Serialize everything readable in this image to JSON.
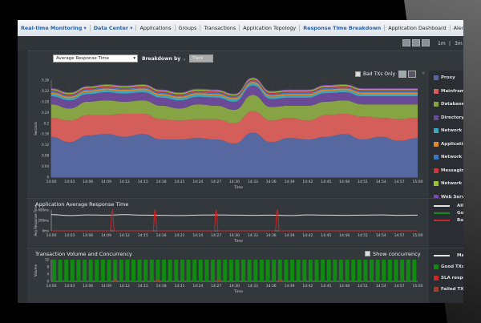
{
  "nav": {
    "items": [
      {
        "label": "Real-time Monitoring ▾",
        "active": true
      },
      {
        "label": "Data Center ▾",
        "active": true
      },
      {
        "label": "Applications"
      },
      {
        "label": "Groups"
      },
      {
        "label": "Transactions"
      },
      {
        "label": "Application Topology"
      },
      {
        "label": "Response Time Breakdown",
        "active": true
      },
      {
        "label": "Application Dashboard"
      },
      {
        "label": "Alerts"
      }
    ]
  },
  "toolbar": {
    "range_1": "1m",
    "separator": "|",
    "range_2": "3m"
  },
  "breakdown": {
    "metric_select": "Average Response Time",
    "label": "Breakdown by",
    "arrow": "»",
    "tiers_select": "Tiers",
    "bad_only_label": "Bad TXs Only",
    "legend_toggle": "»"
  },
  "times": [
    "14:00",
    "14:03",
    "14:06",
    "14:09",
    "14:12",
    "14:15",
    "14:18",
    "14:21",
    "14:24",
    "14:27",
    "14:30",
    "14:33",
    "14:36",
    "14:39",
    "14:42",
    "14:45",
    "14:48",
    "14:51",
    "14:54",
    "14:57",
    "15:00"
  ],
  "chart_data": [
    {
      "type": "area",
      "stacked": true,
      "xlabel": "Time",
      "ylabel": "Seconds",
      "ylim": [
        0,
        0.36
      ],
      "yticks": [
        "0",
        "0.04",
        "0.08",
        "0.12",
        "0.16",
        "0.2",
        "0.24",
        "0.28",
        "0.32",
        "0.36"
      ],
      "grid": true,
      "legend": "right",
      "series": [
        {
          "name": "Proxy",
          "color": "#56689f",
          "values": [
            0.15,
            0.13,
            0.155,
            0.16,
            0.15,
            0.16,
            0.14,
            0.14,
            0.145,
            0.14,
            0.125,
            0.165,
            0.13,
            0.145,
            0.14,
            0.15,
            0.16,
            0.14,
            0.15,
            0.135,
            0.145
          ]
        },
        {
          "name": "Mainframe",
          "color": "#d45f5a",
          "values": [
            0.07,
            0.08,
            0.075,
            0.07,
            0.085,
            0.075,
            0.075,
            0.07,
            0.07,
            0.075,
            0.075,
            0.08,
            0.08,
            0.075,
            0.07,
            0.08,
            0.075,
            0.085,
            0.07,
            0.08,
            0.075
          ]
        },
        {
          "name": "Database Serv",
          "color": "#86a443",
          "values": [
            0.05,
            0.045,
            0.05,
            0.055,
            0.045,
            0.05,
            0.05,
            0.045,
            0.055,
            0.05,
            0.05,
            0.06,
            0.05,
            0.045,
            0.055,
            0.05,
            0.05,
            0.045,
            0.05,
            0.055,
            0.05
          ]
        },
        {
          "name": "Directory",
          "color": "#6a4a96",
          "values": [
            0.03,
            0.03,
            0.028,
            0.03,
            0.03,
            0.03,
            0.03,
            0.03,
            0.028,
            0.03,
            0.03,
            0.035,
            0.03,
            0.03,
            0.03,
            0.032,
            0.03,
            0.03,
            0.03,
            0.03,
            0.03
          ]
        },
        {
          "name": "Network to We",
          "color": "#3aa6c0",
          "values": [
            0.008,
            0.008,
            0.008,
            0.008,
            0.008,
            0.008,
            0.008,
            0.008,
            0.008,
            0.008,
            0.008,
            0.008,
            0.008,
            0.008,
            0.008,
            0.008,
            0.008,
            0.008,
            0.008,
            0.008,
            0.008
          ]
        },
        {
          "name": "Application Se",
          "color": "#e0892a",
          "values": [
            0.006,
            0.006,
            0.006,
            0.006,
            0.006,
            0.006,
            0.006,
            0.006,
            0.006,
            0.006,
            0.006,
            0.006,
            0.006,
            0.006,
            0.006,
            0.006,
            0.006,
            0.006,
            0.006,
            0.006,
            0.006
          ]
        },
        {
          "name": "Network to Me",
          "color": "#3a76c6",
          "values": [
            0.005,
            0.005,
            0.005,
            0.005,
            0.005,
            0.005,
            0.005,
            0.005,
            0.005,
            0.005,
            0.005,
            0.005,
            0.005,
            0.005,
            0.005,
            0.005,
            0.005,
            0.005,
            0.005,
            0.005,
            0.005
          ]
        },
        {
          "name": "Messaging",
          "color": "#c8383a",
          "values": [
            0.004,
            0.004,
            0.004,
            0.004,
            0.004,
            0.004,
            0.004,
            0.004,
            0.004,
            0.004,
            0.004,
            0.004,
            0.004,
            0.004,
            0.004,
            0.004,
            0.004,
            0.004,
            0.004,
            0.004,
            0.004
          ]
        },
        {
          "name": "Network to Ap",
          "color": "#98c43a",
          "values": [
            0.004,
            0.004,
            0.004,
            0.004,
            0.004,
            0.004,
            0.004,
            0.004,
            0.004,
            0.004,
            0.004,
            0.004,
            0.004,
            0.004,
            0.004,
            0.004,
            0.004,
            0.004,
            0.004,
            0.004,
            0.004
          ]
        },
        {
          "name": "Web Server",
          "color": "#7a4ab6",
          "values": [
            0.003,
            0.003,
            0.003,
            0.003,
            0.003,
            0.003,
            0.003,
            0.003,
            0.003,
            0.003,
            0.003,
            0.003,
            0.003,
            0.003,
            0.003,
            0.003,
            0.003,
            0.003,
            0.003,
            0.003,
            0.003
          ]
        }
      ]
    },
    {
      "type": "line",
      "title": "Application Average Response Time",
      "xlabel": "Time",
      "ylabel": "Avg Response Time",
      "ylim": [
        0,
        450
      ],
      "yticks": [
        "0ms",
        "200ms",
        "400ms"
      ],
      "legend": "right",
      "series": [
        {
          "name": "All T",
          "color": "#e0e0e0",
          "values": [
            350,
            330,
            345,
            340,
            350,
            340,
            335,
            330,
            340,
            345,
            340,
            335,
            340,
            330,
            345,
            340,
            335,
            340,
            345,
            335,
            340
          ]
        },
        {
          "name": "Good",
          "color": "#1a8a1a",
          "values": [
            0,
            0,
            0,
            0,
            0,
            0,
            0,
            0,
            0,
            0,
            0,
            0,
            0,
            0,
            0,
            0,
            0,
            0,
            0,
            0,
            0
          ]
        },
        {
          "name": "Bad",
          "color": "#c82828",
          "spikes_at": [
            "14:10",
            "14:17",
            "14:27",
            "14:37"
          ],
          "spike_value": 450
        }
      ]
    },
    {
      "type": "bar",
      "title": "Transaction Volume and Concurrency",
      "xlabel": "Time",
      "ylabel": "Volume",
      "ylim": [
        0,
        12
      ],
      "yticks": [
        "0",
        "4",
        "8",
        "12"
      ],
      "show_concurrency_label": "Show concurrency",
      "legend": "right",
      "series": [
        {
          "name": "Max.",
          "color": "#e0e0e0"
        },
        {
          "name": "Good TXs",
          "color": "#118a11",
          "value_per_minute": 12
        },
        {
          "name": "SLA response t",
          "color": "#c82828"
        },
        {
          "name": "Failed TXs",
          "color": "#a0402a",
          "failed_at": [
            "14:10",
            "14:17",
            "14:27",
            "14:37"
          ],
          "failed_value": 1
        }
      ]
    }
  ]
}
